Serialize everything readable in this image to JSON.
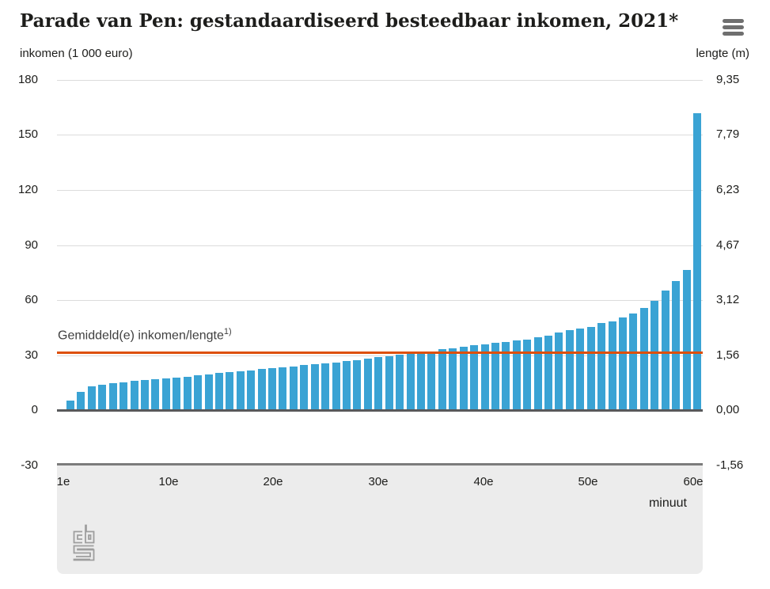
{
  "title": "Parade van Pen: gestandaardiseerd besteedbaar inkomen, 2021*",
  "axes": {
    "left_title": "inkomen (1 000 euro)",
    "right_title": "lengte (m)",
    "left_ticks": [
      "180",
      "150",
      "120",
      "90",
      "60",
      "30",
      "0",
      "-30"
    ],
    "right_ticks": [
      "9,35",
      "7,79",
      "6,23",
      "4,67",
      "3,12",
      "1,56",
      "0,00",
      "-1,56"
    ],
    "x_ticks": [
      "1e",
      "10e",
      "20e",
      "30e",
      "40e",
      "50e",
      "60e"
    ],
    "x_axis_label": "minuut"
  },
  "mean_line": {
    "label": "Gemiddeld(e) inkomen/lengte",
    "superscript": "1)",
    "income_value": 32.1
  },
  "colors": {
    "bar": "#3aa3d4",
    "mean_line": "#dd4f08",
    "grid": "#dcdcdc",
    "zero_line": "#58595b",
    "bottom_line": "#7c7c7c",
    "area_background": "#ececec",
    "logo_gray": "#9e9e9e",
    "menu_icon": "#6f6f6f",
    "text": "#1d1d1b"
  },
  "chart_data": {
    "type": "bar",
    "title": "Parade van Pen: gestandaardiseerd besteedbaar inkomen, 2021*",
    "xlabel": "minuut",
    "ylabel_left": "inkomen (1 000 euro)",
    "ylabel_right": "lengte (m)",
    "ylim_left": [
      -30,
      180
    ],
    "ylim_right": [
      -1.56,
      9.35
    ],
    "x_tick_labels": [
      "1e",
      "10e",
      "20e",
      "30e",
      "40e",
      "50e",
      "60e"
    ],
    "grid": true,
    "legend_position": "none",
    "mean_income": 32.1,
    "categories_minuut": [
      1,
      2,
      3,
      4,
      5,
      6,
      7,
      8,
      9,
      10,
      11,
      12,
      13,
      14,
      15,
      16,
      17,
      18,
      19,
      20,
      21,
      22,
      23,
      24,
      25,
      26,
      27,
      28,
      29,
      30,
      31,
      32,
      33,
      34,
      35,
      36,
      37,
      38,
      39,
      40,
      41,
      42,
      43,
      44,
      45,
      46,
      47,
      48,
      49,
      50,
      51,
      52,
      53,
      54,
      55,
      56,
      57,
      58,
      59,
      60
    ],
    "values_income_1000_euro": [
      5.2,
      9.9,
      12.8,
      14.0,
      14.7,
      15.3,
      15.8,
      16.4,
      16.8,
      17.3,
      17.8,
      18.3,
      19.0,
      19.6,
      20.2,
      20.6,
      21.2,
      21.7,
      22.3,
      22.8,
      23.4,
      23.9,
      24.5,
      25.0,
      25.5,
      26.1,
      26.6,
      27.2,
      27.9,
      28.8,
      29.5,
      30.2,
      30.6,
      30.9,
      31.4,
      33.2,
      33.5,
      34.7,
      35.3,
      36.0,
      36.7,
      37.1,
      37.8,
      38.6,
      39.6,
      40.6,
      42.4,
      43.6,
      44.5,
      45.3,
      47.3,
      48.5,
      50.6,
      52.7,
      55.7,
      59.6,
      65.2,
      70.5,
      76.3,
      161.7
    ]
  }
}
